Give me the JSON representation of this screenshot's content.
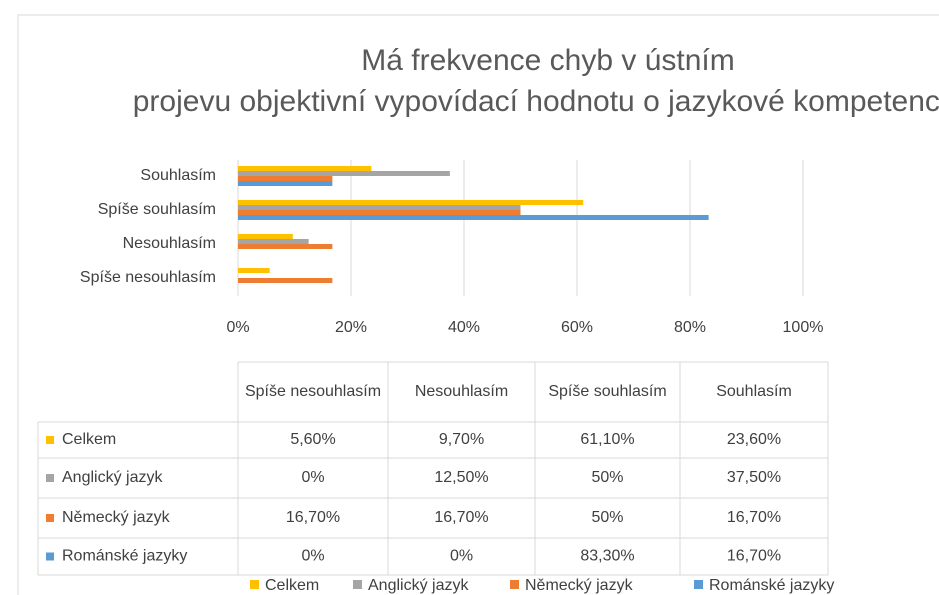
{
  "chart_data": {
    "type": "bar",
    "orientation": "horizontal",
    "title": "Má frekvence chyb v ústním projevu objektivní vypovídací hodnotu o jazykové kompetenci?",
    "categories": [
      "Spíše nesouhlasím",
      "Nesouhlasím",
      "Spíše souhlasím",
      "Souhlasím"
    ],
    "series": [
      {
        "name": "Celkem",
        "color": "#FFC000",
        "values": [
          5.6,
          9.7,
          61.1,
          23.6
        ],
        "value_labels": [
          "5,60%",
          "9,70%",
          "61,10%",
          "23,60%"
        ]
      },
      {
        "name": "Anglický jazyk",
        "color": "#A5A5A5",
        "values": [
          0,
          12.5,
          50,
          37.5
        ],
        "value_labels": [
          "0%",
          "12,50%",
          "50%",
          "37,50%"
        ]
      },
      {
        "name": "Německý jazyk",
        "color": "#ED7D31",
        "values": [
          16.7,
          16.7,
          50,
          16.7
        ],
        "value_labels": [
          "16,70%",
          "16,70%",
          "50%",
          "16,70%"
        ]
      },
      {
        "name": "Románské jazyky",
        "color": "#5B9BD5",
        "values": [
          0,
          0,
          83.3,
          16.7
        ],
        "value_labels": [
          "0%",
          "0%",
          "83,30%",
          "16,70%"
        ]
      }
    ],
    "xlim": [
      0,
      100
    ],
    "xticks": [
      {
        "value": 0,
        "label": "0%"
      },
      {
        "value": 20,
        "label": "20%"
      },
      {
        "value": 40,
        "label": "40%"
      },
      {
        "value": 60,
        "label": "60%"
      },
      {
        "value": 80,
        "label": "80%"
      },
      {
        "value": 100,
        "label": "100%"
      }
    ],
    "grid": true,
    "legend": "bottom"
  }
}
